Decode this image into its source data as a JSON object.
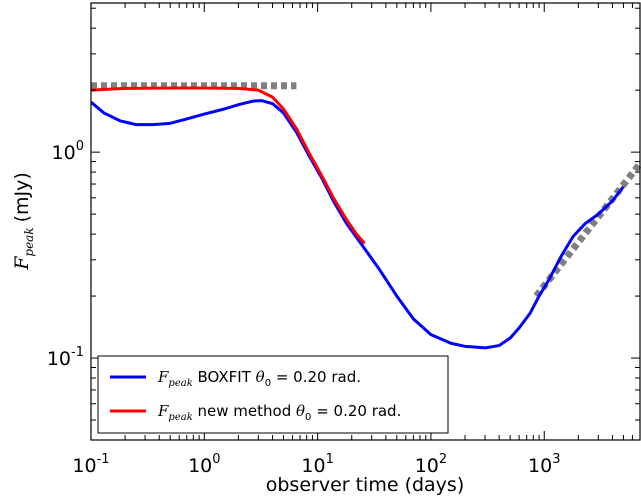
{
  "chart_data": {
    "type": "line",
    "xscale": "log",
    "yscale": "log",
    "xlim": [
      0.1,
      7000
    ],
    "ylim": [
      0.04,
      5.3
    ],
    "xlabel": "observer time (days)",
    "ylabel": {
      "symbol": "F",
      "sub": "peak",
      "unit": "(mJy)"
    },
    "xticks": [
      {
        "value": 0.1,
        "base": "10",
        "exp": "-1"
      },
      {
        "value": 1,
        "base": "10",
        "exp": "0"
      },
      {
        "value": 10,
        "base": "10",
        "exp": "1"
      },
      {
        "value": 100,
        "base": "10",
        "exp": "2"
      },
      {
        "value": 1000,
        "base": "10",
        "exp": "3"
      }
    ],
    "yticks": [
      {
        "value": 0.1,
        "base": "10",
        "exp": "-1"
      },
      {
        "value": 1,
        "base": "10",
        "exp": "0"
      }
    ],
    "series": [
      {
        "name": "F_peak BOXFIT θ0 = 0.20 rad.",
        "color": "#0000ff",
        "style": "solid",
        "points": [
          [
            0.1,
            1.75
          ],
          [
            0.13,
            1.55
          ],
          [
            0.18,
            1.42
          ],
          [
            0.25,
            1.36
          ],
          [
            0.35,
            1.36
          ],
          [
            0.5,
            1.38
          ],
          [
            0.7,
            1.45
          ],
          [
            1.0,
            1.53
          ],
          [
            1.5,
            1.62
          ],
          [
            2.0,
            1.7
          ],
          [
            2.7,
            1.77
          ],
          [
            3.2,
            1.78
          ],
          [
            4.0,
            1.72
          ],
          [
            5.0,
            1.55
          ],
          [
            6.5,
            1.25
          ],
          [
            8.5,
            0.95
          ],
          [
            11,
            0.74
          ],
          [
            14,
            0.57
          ],
          [
            18,
            0.45
          ],
          [
            25,
            0.35
          ],
          [
            35,
            0.27
          ],
          [
            50,
            0.2
          ],
          [
            70,
            0.155
          ],
          [
            100,
            0.13
          ],
          [
            150,
            0.118
          ],
          [
            200,
            0.114
          ],
          [
            250,
            0.113
          ],
          [
            300,
            0.112
          ],
          [
            400,
            0.115
          ],
          [
            500,
            0.125
          ],
          [
            600,
            0.14
          ],
          [
            750,
            0.165
          ],
          [
            900,
            0.2
          ],
          [
            1100,
            0.24
          ],
          [
            1400,
            0.31
          ],
          [
            1800,
            0.39
          ],
          [
            2300,
            0.45
          ],
          [
            3000,
            0.5
          ],
          [
            4000,
            0.58
          ],
          [
            5000,
            0.68
          ]
        ]
      },
      {
        "name": "F_peak new method θ0 = 0.20 rad.",
        "color": "#ff0000",
        "style": "solid",
        "points": [
          [
            0.1,
            2.0
          ],
          [
            0.2,
            2.04
          ],
          [
            0.5,
            2.05
          ],
          [
            1.0,
            2.05
          ],
          [
            2.0,
            2.04
          ],
          [
            3.0,
            2.0
          ],
          [
            4.0,
            1.85
          ],
          [
            5.0,
            1.62
          ],
          [
            6.5,
            1.3
          ],
          [
            8.5,
            0.98
          ],
          [
            11,
            0.76
          ],
          [
            14,
            0.59
          ],
          [
            18,
            0.47
          ],
          [
            22,
            0.4
          ],
          [
            26,
            0.36
          ]
        ]
      },
      {
        "name": "asymptote-plateau",
        "color": "#808080",
        "style": "dotted",
        "points": [
          [
            0.1,
            2.1
          ],
          [
            6.5,
            2.1
          ]
        ]
      },
      {
        "name": "asymptote-late",
        "color": "#808080",
        "style": "dotted",
        "points": [
          [
            850,
            0.2
          ],
          [
            7000,
            0.88
          ]
        ]
      }
    ],
    "legend": {
      "placement": "lower-left",
      "entries": [
        {
          "color": "#0000ff",
          "symbol": "F",
          "sub": "peak",
          "text": " BOXFIT ",
          "theta": "θ",
          "theta_sub": "0",
          "rest": " = 0.20 rad."
        },
        {
          "color": "#ff0000",
          "symbol": "F",
          "sub": "peak",
          "text": " new method ",
          "theta": "θ",
          "theta_sub": "0",
          "rest": " = 0.20 rad."
        }
      ]
    },
    "grid": false
  }
}
